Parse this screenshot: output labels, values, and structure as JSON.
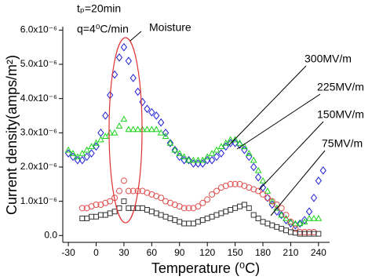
{
  "chart_data": {
    "type": "scatter",
    "x_label": "Temperature (⁰C)",
    "y_label": "Current density(amps/m²)",
    "annotations": [
      "tₚ=20min",
      "q=4⁰C/min",
      "Moisture"
    ],
    "x": [
      -30,
      -25,
      -20,
      -15,
      -10,
      -5,
      0,
      5,
      10,
      15,
      20,
      25,
      30,
      35,
      40,
      45,
      50,
      55,
      60,
      65,
      70,
      75,
      80,
      85,
      90,
      95,
      100,
      105,
      110,
      115,
      120,
      125,
      130,
      135,
      140,
      145,
      150,
      155,
      160,
      165,
      170,
      175,
      180,
      185,
      190,
      195,
      200,
      205,
      210,
      215,
      220,
      225,
      230,
      235,
      240,
      245
    ],
    "series": [
      {
        "name": "300MV/m",
        "color": "#1f1fd6",
        "marker": "diamond",
        "values": [
          2.4e-06,
          2.3e-06,
          2.2e-06,
          2.2e-06,
          2.3e-06,
          2.4e-06,
          2.6e-06,
          3e-06,
          3.5e-06,
          4.1e-06,
          4.7e-06,
          5.2e-06,
          5.5e-06,
          5.1e-06,
          4.6e-06,
          4.2e-06,
          3.9e-06,
          3.7e-06,
          3.6e-06,
          3.5e-06,
          3.3e-06,
          3e-06,
          2.7e-06,
          2.5e-06,
          2.3e-06,
          2.2e-06,
          2.2e-06,
          2.1e-06,
          2.1e-06,
          2.1e-06,
          2.2e-06,
          2.2e-06,
          2.3e-06,
          2.4e-06,
          2.6e-06,
          2.7e-06,
          2.7e-06,
          2.65e-06,
          2.5e-06,
          2.3e-06,
          2e-06,
          1.7e-06,
          1.4e-06,
          1.1e-06,
          9e-07,
          7e-07,
          6e-07,
          4.5e-07,
          3.5e-07,
          3e-07,
          3.5e-07,
          4.5e-07,
          7e-07,
          1.1e-06,
          1.6e-06,
          1.9e-06
        ]
      },
      {
        "name": "225MV/m",
        "color": "#19d419",
        "marker": "triangle",
        "values": [
          2.5e-06,
          2.4e-06,
          2.3e-06,
          2.4e-06,
          2.5e-06,
          2.6e-06,
          2.7e-06,
          2.8e-06,
          2.9e-06,
          3e-06,
          3e-06,
          3.2e-06,
          3.4e-06,
          3.1e-06,
          3.1e-06,
          3.1e-06,
          3.1e-06,
          3.1e-06,
          3.1e-06,
          3.1e-06,
          3e-06,
          2.9e-06,
          2.7e-06,
          2.5e-06,
          2.4e-06,
          2.3e-06,
          2.2e-06,
          2.2e-06,
          2.2e-06,
          2.2e-06,
          2.3e-06,
          2.4e-06,
          2.5e-06,
          2.6e-06,
          2.7e-06,
          2.8e-06,
          2.8e-06,
          2.7e-06,
          2.6e-06,
          2.4e-06,
          2.2e-06,
          1.9e-06,
          1.6e-06,
          1.3e-06,
          1e-06,
          8e-07,
          6e-07,
          5e-07,
          4e-07,
          3.5e-07,
          3.5e-07,
          4e-07,
          5e-07,
          5e-07,
          5e-07,
          null
        ]
      },
      {
        "name": "150MV/m",
        "color": "#e05050",
        "marker": "circle",
        "values": [
          null,
          null,
          null,
          8e-07,
          8e-07,
          8.5e-07,
          9e-07,
          9e-07,
          9.5e-07,
          1e-06,
          1.1e-06,
          1.3e-06,
          1.6e-06,
          1.3e-06,
          1.3e-06,
          1.3e-06,
          1.3e-06,
          1.25e-06,
          1.2e-06,
          1.15e-06,
          1.1e-06,
          1e-06,
          9.5e-07,
          9e-07,
          8.5e-07,
          8e-07,
          8e-07,
          8e-07,
          8.5e-07,
          9.5e-07,
          1.05e-06,
          1.2e-06,
          1.3e-06,
          1.4e-06,
          1.45e-06,
          1.5e-06,
          1.5e-06,
          1.5e-06,
          1.45e-06,
          1.4e-06,
          1.35e-06,
          1.3e-06,
          1.2e-06,
          1.1e-06,
          1e-06,
          9e-07,
          8e-07,
          6e-07,
          4e-07,
          2e-07,
          1e-07,
          1e-07,
          1e-07,
          1e-07,
          null,
          null
        ]
      },
      {
        "name": "75MV/m",
        "color": "#333333",
        "marker": "square",
        "values": [
          null,
          null,
          null,
          5e-07,
          5e-07,
          5.5e-07,
          5.5e-07,
          6e-07,
          6e-07,
          6.5e-07,
          7e-07,
          8e-07,
          1e-06,
          8e-07,
          8e-07,
          8e-07,
          8e-07,
          7.5e-07,
          7e-07,
          6.5e-07,
          6e-07,
          5.5e-07,
          5e-07,
          4.5e-07,
          4e-07,
          3.5e-07,
          3.5e-07,
          3.5e-07,
          4e-07,
          4.5e-07,
          5e-07,
          5.5e-07,
          6e-07,
          6.5e-07,
          7e-07,
          7.5e-07,
          8e-07,
          8.5e-07,
          9e-07,
          8e-07,
          6e-07,
          5e-07,
          4e-07,
          3.5e-07,
          3e-07,
          2.5e-07,
          2e-07,
          1.5e-07,
          1e-07,
          8e-08,
          5e-08,
          5e-08,
          5e-08,
          5e-08,
          5e-08,
          null
        ]
      }
    ],
    "xlim": [
      -36,
      252
    ],
    "xticks": [
      -30,
      0,
      30,
      60,
      90,
      120,
      150,
      180,
      210,
      240
    ],
    "ylim": [
      -2e-07,
      6.1e-06
    ],
    "yticks": [
      {
        "value": 0,
        "label": "0.0"
      },
      {
        "value": 1e-06,
        "label": "1.0x10⁻⁶"
      },
      {
        "value": 2e-06,
        "label": "2.0x10⁻⁶"
      },
      {
        "value": 3e-06,
        "label": "3.0x10⁻⁶"
      },
      {
        "value": 4e-06,
        "label": "4.0x10⁻⁶"
      },
      {
        "value": 5e-06,
        "label": "5.0x10⁻⁶"
      },
      {
        "value": 6e-06,
        "label": "6.0x10⁻⁶"
      }
    ],
    "grid": false
  }
}
